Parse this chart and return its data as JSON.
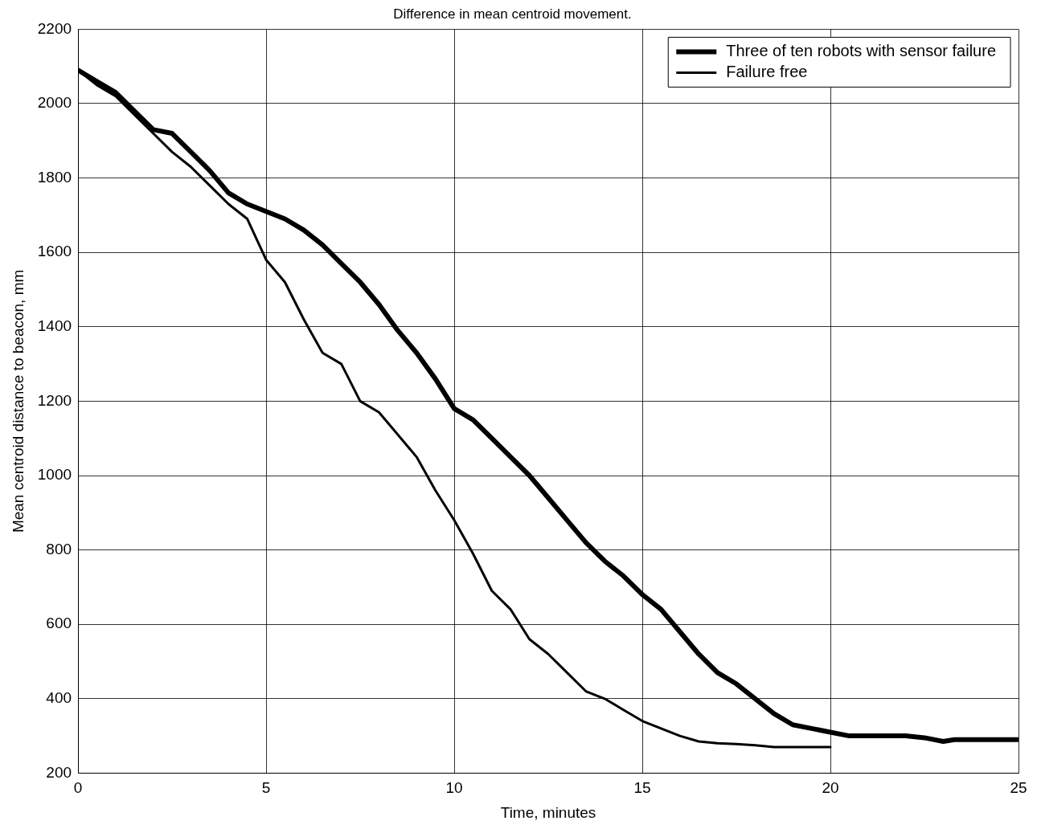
{
  "chart_data": {
    "type": "line",
    "title": "Difference in mean centroid movement.",
    "xlabel": "Time, minutes",
    "ylabel": "Mean centroid distance to beacon, mm",
    "xlim": [
      0,
      25
    ],
    "xticks": [
      0,
      5,
      10,
      15,
      20,
      25
    ],
    "ylim": [
      200,
      2200
    ],
    "yticks": [
      200,
      400,
      600,
      800,
      1000,
      1200,
      1400,
      1600,
      1800,
      2000,
      2200
    ],
    "grid": true,
    "legend": "top right",
    "marker": "none",
    "line_style": "solid",
    "series": [
      {
        "name": "Three of ten robots with sensor failure",
        "color": "#000000",
        "x": [
          0,
          0.5,
          1,
          1.5,
          2,
          2.5,
          3,
          3.5,
          4,
          4.5,
          5,
          5.5,
          6,
          6.5,
          7,
          7.5,
          8,
          8.5,
          9,
          9.5,
          10,
          10.5,
          11,
          11.5,
          12,
          12.5,
          13,
          13.5,
          14,
          14.5,
          15,
          15.5,
          16,
          16.5,
          17,
          17.5,
          18,
          18.5,
          19,
          19.5,
          20,
          20.5,
          21,
          21.5,
          22,
          22.5,
          23,
          23.3,
          24,
          25
        ],
        "values": [
          2090,
          2060,
          2030,
          1980,
          1930,
          1920,
          1870,
          1820,
          1760,
          1730,
          1710,
          1690,
          1660,
          1620,
          1570,
          1520,
          1460,
          1390,
          1330,
          1260,
          1180,
          1150,
          1100,
          1050,
          1000,
          940,
          880,
          820,
          770,
          730,
          680,
          640,
          580,
          520,
          470,
          440,
          400,
          360,
          330,
          320,
          310,
          300,
          300,
          300,
          300,
          295,
          285,
          290,
          290,
          290
        ]
      },
      {
        "name": "Failure free",
        "color": "#000000",
        "x": [
          0,
          0.5,
          1,
          1.5,
          2,
          2.5,
          3,
          3.5,
          4,
          4.5,
          5,
          5.5,
          6,
          6.5,
          7,
          7.5,
          8,
          8.5,
          9,
          9.5,
          10,
          10.5,
          11,
          11.5,
          12,
          12.5,
          13,
          13.5,
          14,
          14.5,
          15,
          15.5,
          16,
          16.5,
          17,
          17.5,
          18,
          18.5,
          19,
          20
        ],
        "values": [
          2090,
          2050,
          2020,
          1970,
          1920,
          1870,
          1830,
          1780,
          1730,
          1690,
          1580,
          1520,
          1420,
          1330,
          1300,
          1200,
          1170,
          1110,
          1050,
          960,
          880,
          790,
          690,
          640,
          560,
          520,
          470,
          420,
          400,
          370,
          340,
          320,
          300,
          285,
          280,
          278,
          275,
          270,
          270,
          270
        ]
      }
    ]
  }
}
